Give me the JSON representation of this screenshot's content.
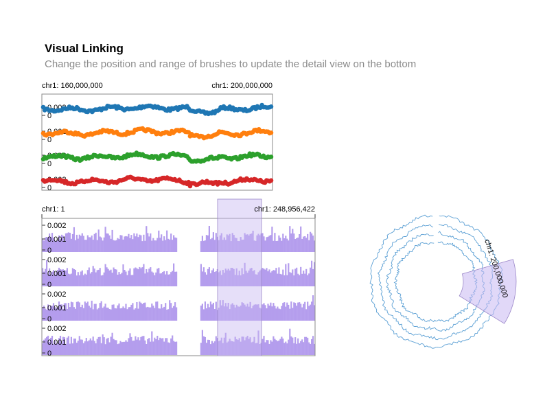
{
  "title": "Visual Linking",
  "subtitle": "Change the position and range of brushes to update the detail view on the bottom",
  "colors": {
    "blue": "#1f77b4",
    "orange": "#ff7f0e",
    "green": "#2ca02c",
    "red": "#d62728",
    "bar": "#b49ded",
    "brush": "#c8b8f2",
    "circular_line": "#5a9fd4"
  },
  "chart_data": [
    {
      "name": "detail-view",
      "type": "scatter",
      "x_labels": {
        "start": "chr1: 160,000,000",
        "end": "chr1: 200,000,000"
      },
      "x_range": [
        160000000,
        200000000
      ],
      "y_tick_labels": [
        "0.002",
        "0"
      ],
      "series": [
        {
          "color": "#1f77b4"
        },
        {
          "color": "#ff7f0e"
        },
        {
          "color": "#2ca02c"
        },
        {
          "color": "#d62728"
        }
      ]
    },
    {
      "name": "overview",
      "type": "bar",
      "x_labels": {
        "start": "chr1: 1",
        "end": "chr1: 248,956,422"
      },
      "x_range": [
        1,
        248956422
      ],
      "y_tick_labels": [
        "0.002",
        "0.001",
        "0"
      ],
      "y_range": [
        0,
        0.0025
      ],
      "tracks": 4,
      "brush_range": [
        160000000,
        200000000
      ]
    },
    {
      "name": "circular-overview",
      "type": "line",
      "label": "chr1: 200,000,000",
      "tracks": 4,
      "brush_range": [
        160000000,
        200000000
      ]
    }
  ]
}
